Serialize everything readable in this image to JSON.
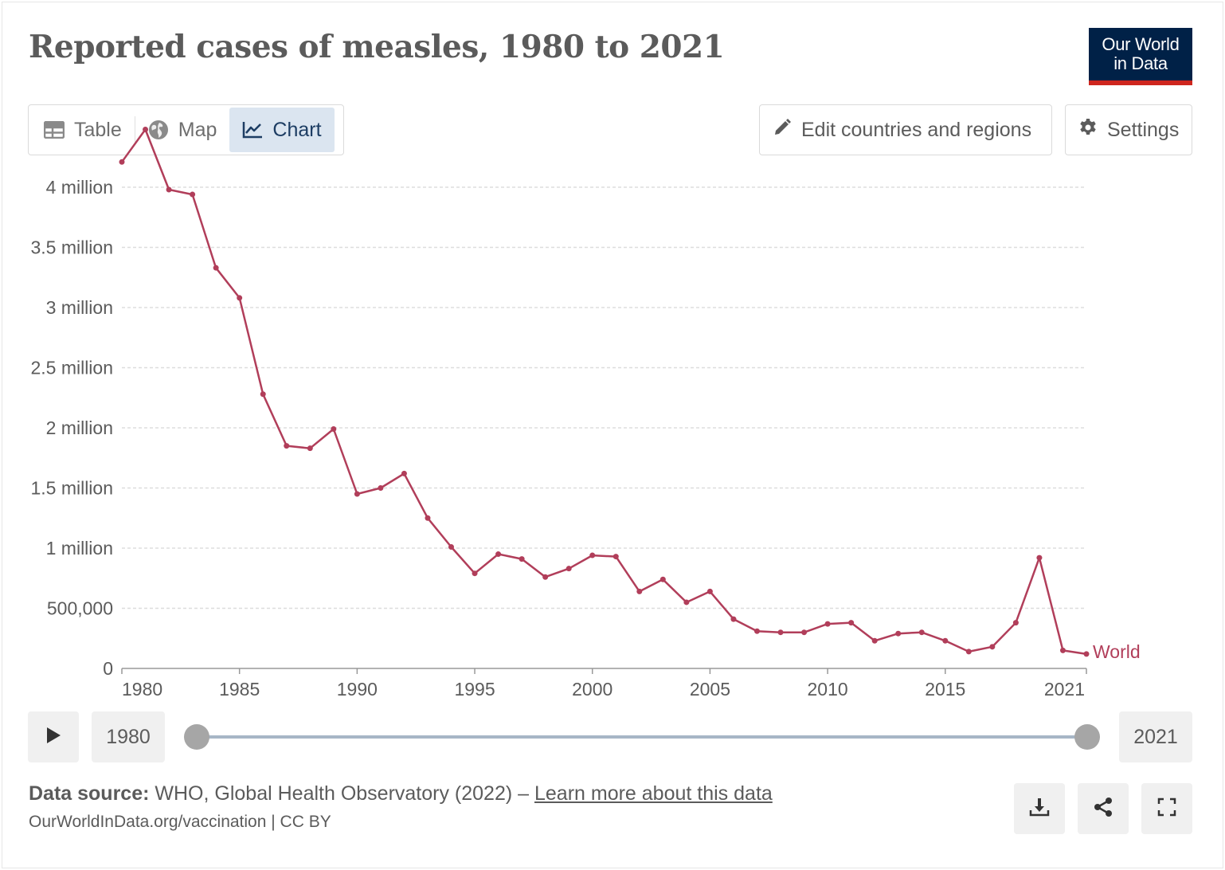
{
  "header": {
    "title": "Reported cases of measles, 1980 to 2021",
    "logo_line1": "Our World",
    "logo_line2": "in Data"
  },
  "tabs": [
    {
      "label": "Table",
      "icon": "table-icon",
      "active": false
    },
    {
      "label": "Map",
      "icon": "globe-icon",
      "active": false
    },
    {
      "label": "Chart",
      "icon": "line-chart-icon",
      "active": true
    }
  ],
  "controls": {
    "edit_label": "Edit countries and regions",
    "settings_label": "Settings"
  },
  "timeline": {
    "start_year": "1980",
    "end_year": "2021"
  },
  "footer": {
    "source_prefix": "Data source:",
    "source_text": "WHO, Global Health Observatory (2022) – ",
    "learn_more": "Learn more about this data",
    "url_license": "OurWorldInData.org/vaccination | CC BY"
  },
  "colors": {
    "series": "#b13e5a",
    "logo_bg": "#002147",
    "logo_accent": "#ce261e",
    "active_tab": "#dbe5f0"
  },
  "chart_data": {
    "type": "line",
    "title": "Reported cases of measles, 1980 to 2021",
    "xlabel": "",
    "ylabel": "",
    "ylim": [
      0,
      4000000
    ],
    "xlim": [
      1980,
      2021
    ],
    "grid": true,
    "y_ticks": [
      {
        "value": 0,
        "label": "0"
      },
      {
        "value": 500000,
        "label": "500,000"
      },
      {
        "value": 1000000,
        "label": "1 million"
      },
      {
        "value": 1500000,
        "label": "1.5 million"
      },
      {
        "value": 2000000,
        "label": "2 million"
      },
      {
        "value": 2500000,
        "label": "2.5 million"
      },
      {
        "value": 3000000,
        "label": "3 million"
      },
      {
        "value": 3500000,
        "label": "3.5 million"
      },
      {
        "value": 4000000,
        "label": "4 million"
      }
    ],
    "x_ticks": [
      {
        "value": 1980,
        "label": "1980"
      },
      {
        "value": 1985,
        "label": "1985"
      },
      {
        "value": 1990,
        "label": "1990"
      },
      {
        "value": 1995,
        "label": "1995"
      },
      {
        "value": 2000,
        "label": "2000"
      },
      {
        "value": 2005,
        "label": "2005"
      },
      {
        "value": 2010,
        "label": "2010"
      },
      {
        "value": 2015,
        "label": "2015"
      },
      {
        "value": 2021,
        "label": "2021"
      }
    ],
    "series": [
      {
        "name": "World",
        "x": [
          1980,
          1981,
          1982,
          1983,
          1984,
          1985,
          1986,
          1987,
          1988,
          1989,
          1990,
          1991,
          1992,
          1993,
          1994,
          1995,
          1996,
          1997,
          1998,
          1999,
          2000,
          2001,
          2002,
          2003,
          2004,
          2005,
          2006,
          2007,
          2008,
          2009,
          2010,
          2011,
          2012,
          2013,
          2014,
          2015,
          2016,
          2017,
          2018,
          2019,
          2020,
          2021
        ],
        "values": [
          4210000,
          4480000,
          3980000,
          3940000,
          3330000,
          3080000,
          2280000,
          1850000,
          1830000,
          1990000,
          1450000,
          1500000,
          1620000,
          1250000,
          1010000,
          790000,
          950000,
          910000,
          760000,
          830000,
          940000,
          930000,
          640000,
          740000,
          550000,
          640000,
          410000,
          310000,
          300000,
          300000,
          370000,
          380000,
          230000,
          290000,
          300000,
          230000,
          140000,
          180000,
          380000,
          920000,
          150000,
          120000
        ]
      }
    ]
  }
}
